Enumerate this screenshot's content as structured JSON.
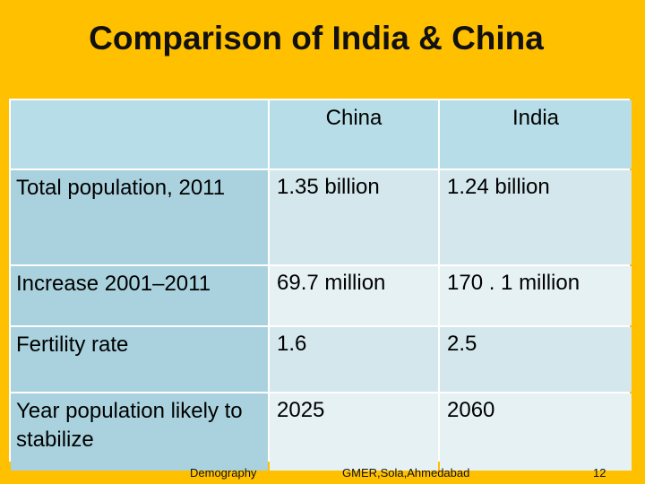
{
  "title": "Comparison of India & China",
  "table": {
    "columns": [
      "",
      "China",
      "India"
    ],
    "rows": [
      {
        "label": "Total population, 2011",
        "china": "1.35 billion",
        "india": "1.24 billion"
      },
      {
        "label": "Increase 2001–2011",
        "china": "69.7 million",
        "india": "170 . 1 million"
      },
      {
        "label": "Fertility rate",
        "china": "1.6",
        "india": "2.5"
      },
      {
        "label": "Year population likely to stabilize",
        "china": "2025",
        "india": "2060"
      }
    ]
  },
  "footer": {
    "left": "Demography",
    "center": "GMER,Sola,Ahmedabad",
    "page_number": "12"
  },
  "colors": {
    "background": "#FFC000",
    "header_cell": "#B7DEE8",
    "row_header": "#A9D2DE",
    "cell_dark": "#D3E7EC",
    "cell_light": "#E6F1F4"
  }
}
